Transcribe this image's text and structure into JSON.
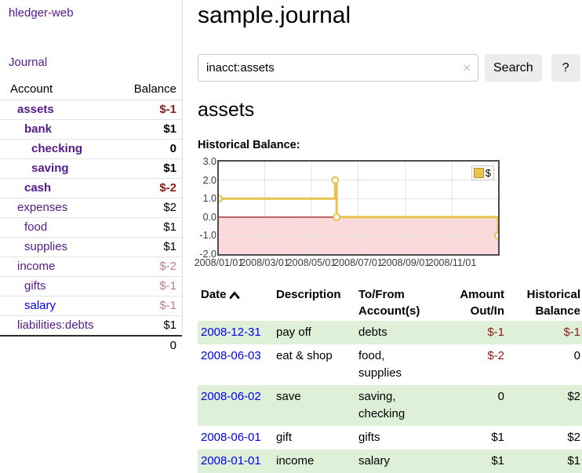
{
  "colors": {
    "link_purple": "#551a8b",
    "link_blue": "#0000ee",
    "negative_strong": "#8b1a1a",
    "negative_faded": "#bd7d85",
    "row_shade_green": "#dff0d8",
    "chart_line_gold": "#e8c24f",
    "chart_negative_pink": "#fadadb",
    "chart_zero_line": "#8b0000",
    "chart_grid": "#e2e2e2"
  },
  "app": {
    "title": "hledger-web"
  },
  "sidebar": {
    "journal_link": "Journal",
    "accounts": {
      "header_account": "Account",
      "header_balance": "Balance",
      "rows": [
        {
          "name": "assets",
          "balance": "$-1",
          "depth": 1,
          "bold": true
        },
        {
          "name": "bank",
          "balance": "$1",
          "depth": 2,
          "bold": true
        },
        {
          "name": "checking",
          "balance": "0",
          "depth": 3,
          "bold": true
        },
        {
          "name": "saving",
          "balance": "$1",
          "depth": 3,
          "bold": true
        },
        {
          "name": "cash",
          "balance": "$-2",
          "depth": 2,
          "bold": true
        },
        {
          "name": "expenses",
          "balance": "$2",
          "depth": 1,
          "bold": false
        },
        {
          "name": "food",
          "balance": "$1",
          "depth": 2,
          "bold": false
        },
        {
          "name": "supplies",
          "balance": "$1",
          "depth": 2,
          "bold": false
        },
        {
          "name": "income",
          "balance": "$-2",
          "depth": 1,
          "bold": false
        },
        {
          "name": "gifts",
          "balance": "$-1",
          "depth": 2,
          "bold": false
        },
        {
          "name": "salary",
          "balance": "$-1",
          "depth": 2,
          "bold": false,
          "link_state": "unvisited"
        },
        {
          "name": "liabilities:debts",
          "balance": "$1",
          "depth": 1,
          "bold": false
        }
      ],
      "total": "0"
    }
  },
  "main": {
    "title": "sample.journal",
    "search": {
      "value": "inacct:assets",
      "clear_icon": "✕",
      "button_label": "Search",
      "help_label": "?"
    },
    "account_heading": "assets"
  },
  "chart_data": {
    "type": "line",
    "step": true,
    "title": "Historical Balance:",
    "x_range": [
      "2008-01-01",
      "2008-12-31"
    ],
    "ylim": [
      -2,
      3
    ],
    "y_ticks": [
      "3.0",
      "2.0",
      "1.0",
      "0.0",
      "-1.0",
      "-2.0"
    ],
    "x_ticks": [
      {
        "date": "2008-01-01",
        "label": "2008/01/01"
      },
      {
        "date": "2008-03-01",
        "label": "2008/03/01"
      },
      {
        "date": "2008-05-01",
        "label": "2008/05/01"
      },
      {
        "date": "2008-07-01",
        "label": "2008/07/01"
      },
      {
        "date": "2008-09-01",
        "label": "2008/09/01"
      },
      {
        "date": "2008-11-01",
        "label": "2008/11/01"
      }
    ],
    "series": [
      {
        "name": "$",
        "points": [
          {
            "x": "2008-01-01",
            "y": 1
          },
          {
            "x": "2008-06-01",
            "y": 2
          },
          {
            "x": "2008-06-03",
            "y": 0
          },
          {
            "x": "2008-12-31",
            "y": -1
          }
        ]
      }
    ],
    "legend": {
      "label": "$",
      "position": "top-right"
    },
    "grid": true,
    "negative_region_shaded": true
  },
  "register": {
    "headers": {
      "date": "Date",
      "description": "Description",
      "accounts": "To/From Account(s)",
      "amount": "Amount Out/In",
      "balance": "Historical Balance"
    },
    "rows": [
      {
        "date": "2008-12-31",
        "description": "pay off",
        "accounts": "debts",
        "amount": "$-1",
        "balance": "$-1"
      },
      {
        "date": "2008-06-03",
        "description": "eat & shop",
        "accounts": "food, supplies",
        "amount": "$-2",
        "balance": "0"
      },
      {
        "date": "2008-06-02",
        "description": "save",
        "accounts": "saving, checking",
        "amount": "0",
        "balance": "$2"
      },
      {
        "date": "2008-06-01",
        "description": "gift",
        "accounts": "gifts",
        "amount": "$1",
        "balance": "$2"
      },
      {
        "date": "2008-01-01",
        "description": "income",
        "accounts": "salary",
        "amount": "$1",
        "balance": "$1"
      }
    ]
  }
}
